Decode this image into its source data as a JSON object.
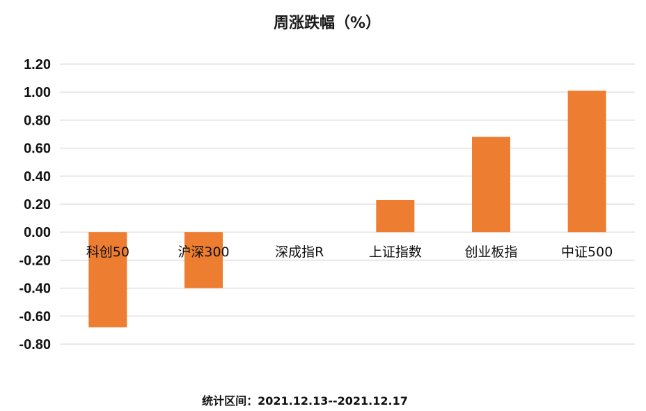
{
  "chart_data": {
    "type": "bar",
    "title": "周涨跌幅（%）",
    "categories": [
      "科创50",
      "沪深300",
      "深成指R",
      "上证指数",
      "创业板指",
      "中证500"
    ],
    "values": [
      -0.68,
      -0.4,
      0.0,
      0.23,
      0.68,
      1.01
    ],
    "ylim": [
      -0.8,
      1.2
    ],
    "yticks": [
      "1.20",
      "1.00",
      "0.80",
      "0.60",
      "0.40",
      "0.20",
      "0.00",
      "-0.20",
      "-0.40",
      "-0.60",
      "-0.80"
    ],
    "ytick_values": [
      1.2,
      1.0,
      0.8,
      0.6,
      0.4,
      0.2,
      0.0,
      -0.2,
      -0.4,
      -0.6,
      -0.8
    ],
    "bar_color": "#ED7D31",
    "grid": true,
    "legend": "none"
  },
  "footer": {
    "label": "统计区间：",
    "range": "2021.12.13--2021.12.17"
  }
}
